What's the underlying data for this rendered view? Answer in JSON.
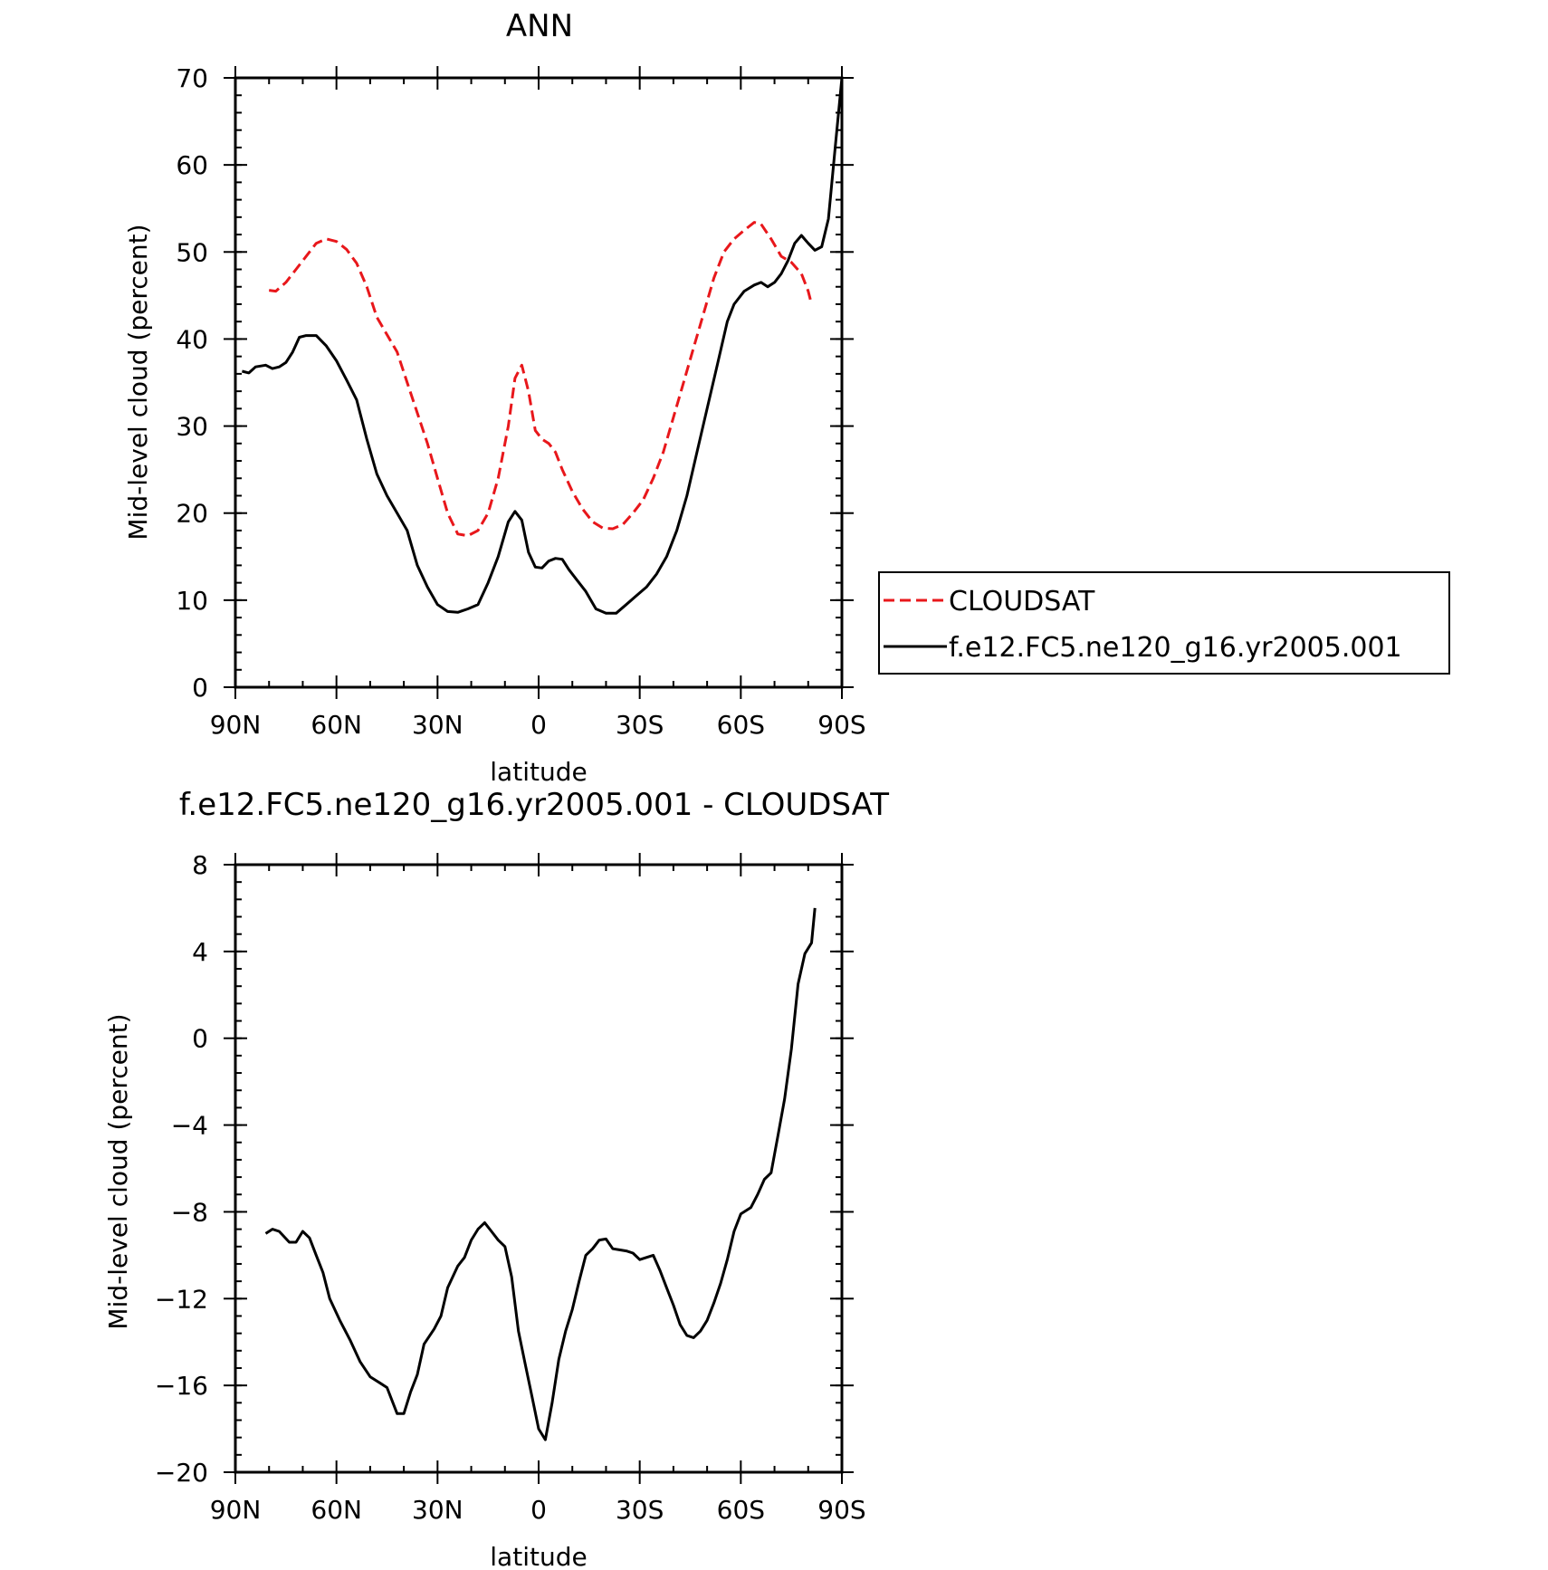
{
  "chart_data": [
    {
      "type": "line",
      "title": "ANN",
      "xlabel": "latitude",
      "ylabel": "Mid-level cloud (percent)",
      "xlim": [
        90,
        -90
      ],
      "ylim": [
        0,
        70
      ],
      "x_ticks": [
        90,
        60,
        30,
        0,
        -30,
        -60,
        -90
      ],
      "x_tick_labels": [
        "90N",
        "60N",
        "30N",
        "0",
        "30S",
        "60S",
        "90S"
      ],
      "y_ticks": [
        0,
        10,
        20,
        30,
        40,
        50,
        60,
        70
      ],
      "y_tick_labels": [
        "0",
        "10",
        "20",
        "30",
        "40",
        "50",
        "60",
        "70"
      ],
      "legend_position": "right",
      "series": [
        {
          "name": "CLOUDSAT",
          "color": "#e8171b",
          "dash": "dashed",
          "points": [
            [
              80,
              45.6
            ],
            [
              78,
              45.5
            ],
            [
              75,
              46.5
            ],
            [
              72,
              48
            ],
            [
              69,
              49.5
            ],
            [
              66,
              51
            ],
            [
              63,
              51.5
            ],
            [
              60,
              51.2
            ],
            [
              57,
              50.3
            ],
            [
              54,
              48.7
            ],
            [
              51,
              46
            ],
            [
              48,
              42.5
            ],
            [
              45,
              40.5
            ],
            [
              42,
              38.5
            ],
            [
              39,
              35
            ],
            [
              36,
              31.5
            ],
            [
              33,
              28
            ],
            [
              30,
              24
            ],
            [
              27,
              20
            ],
            [
              24,
              17.6
            ],
            [
              21,
              17.4
            ],
            [
              18,
              18
            ],
            [
              15,
              20
            ],
            [
              12,
              24
            ],
            [
              9,
              30
            ],
            [
              7,
              35.5
            ],
            [
              5,
              37
            ],
            [
              3,
              34
            ],
            [
              1,
              29.5
            ],
            [
              -1,
              28.5
            ],
            [
              -3,
              28
            ],
            [
              -5,
              27
            ],
            [
              -7,
              25
            ],
            [
              -10,
              22.5
            ],
            [
              -13,
              20.5
            ],
            [
              -16,
              19
            ],
            [
              -19,
              18.3
            ],
            [
              -22,
              18.2
            ],
            [
              -25,
              18.7
            ],
            [
              -28,
              20
            ],
            [
              -31,
              21.5
            ],
            [
              -34,
              24
            ],
            [
              -37,
              27
            ],
            [
              -40,
              31
            ],
            [
              -43,
              35
            ],
            [
              -46,
              39
            ],
            [
              -49,
              43
            ],
            [
              -52,
              47
            ],
            [
              -55,
              50
            ],
            [
              -58,
              51.5
            ],
            [
              -61,
              52.5
            ],
            [
              -64,
              53.4
            ],
            [
              -66,
              53.2
            ],
            [
              -69,
              51.5
            ],
            [
              -72,
              49.5
            ],
            [
              -75,
              48.8
            ],
            [
              -78,
              47.5
            ],
            [
              -80,
              45.5
            ],
            [
              -81,
              44
            ]
          ]
        },
        {
          "name": "f.e12.FC5.ne120_g16.yr2005.001",
          "color": "#000000",
          "dash": "solid",
          "points": [
            [
              88,
              36.3
            ],
            [
              86,
              36.1
            ],
            [
              84,
              36.8
            ],
            [
              81,
              37
            ],
            [
              79,
              36.6
            ],
            [
              77,
              36.8
            ],
            [
              75,
              37.3
            ],
            [
              73,
              38.5
            ],
            [
              71,
              40.2
            ],
            [
              69,
              40.4
            ],
            [
              66,
              40.4
            ],
            [
              63,
              39.2
            ],
            [
              60,
              37.5
            ],
            [
              57,
              35.3
            ],
            [
              54,
              33
            ],
            [
              51,
              28.5
            ],
            [
              48,
              24.5
            ],
            [
              45,
              22
            ],
            [
              42,
              20
            ],
            [
              39,
              18
            ],
            [
              36,
              14
            ],
            [
              33,
              11.5
            ],
            [
              30,
              9.5
            ],
            [
              27,
              8.7
            ],
            [
              24,
              8.6
            ],
            [
              21,
              9
            ],
            [
              18,
              9.5
            ],
            [
              15,
              12
            ],
            [
              12,
              15
            ],
            [
              9,
              19
            ],
            [
              7,
              20.2
            ],
            [
              5,
              19.2
            ],
            [
              3,
              15.5
            ],
            [
              1,
              13.8
            ],
            [
              -1,
              13.7
            ],
            [
              -3,
              14.5
            ],
            [
              -5,
              14.8
            ],
            [
              -7,
              14.7
            ],
            [
              -9,
              13.5
            ],
            [
              -11,
              12.5
            ],
            [
              -14,
              11
            ],
            [
              -17,
              9
            ],
            [
              -20,
              8.5
            ],
            [
              -23,
              8.5
            ],
            [
              -26,
              9.5
            ],
            [
              -29,
              10.5
            ],
            [
              -32,
              11.5
            ],
            [
              -35,
              13
            ],
            [
              -38,
              15
            ],
            [
              -41,
              18
            ],
            [
              -44,
              22
            ],
            [
              -47,
              27
            ],
            [
              -50,
              32
            ],
            [
              -53,
              37
            ],
            [
              -56,
              42
            ],
            [
              -58,
              44
            ],
            [
              -61,
              45.5
            ],
            [
              -64,
              46.2
            ],
            [
              -66,
              46.5
            ],
            [
              -68,
              46
            ],
            [
              -70,
              46.5
            ],
            [
              -72,
              47.5
            ],
            [
              -74,
              49
            ],
            [
              -76,
              51
            ],
            [
              -78,
              51.9
            ],
            [
              -80,
              51
            ],
            [
              -82,
              50.2
            ],
            [
              -84,
              50.6
            ],
            [
              -86,
              53.8
            ],
            [
              -88,
              62
            ],
            [
              -90,
              70
            ]
          ]
        }
      ]
    },
    {
      "type": "line",
      "title": "f.e12.FC5.ne120_g16.yr2005.001 - CLOUDSAT",
      "xlabel": "latitude",
      "ylabel": "Mid-level cloud (percent)",
      "xlim": [
        90,
        -90
      ],
      "ylim": [
        -20,
        8
      ],
      "x_ticks": [
        90,
        60,
        30,
        0,
        -30,
        -60,
        -90
      ],
      "x_tick_labels": [
        "90N",
        "60N",
        "30N",
        "0",
        "30S",
        "60S",
        "90S"
      ],
      "y_ticks": [
        -20,
        -16,
        -12,
        -8,
        -4,
        0,
        4,
        8
      ],
      "y_tick_labels": [
        "−20",
        "−16",
        "−12",
        "−8",
        "−4",
        "0",
        "4",
        "8"
      ],
      "series": [
        {
          "color": "#000000",
          "dash": "solid",
          "points": [
            [
              81,
              -9
            ],
            [
              79,
              -8.8
            ],
            [
              77,
              -8.9
            ],
            [
              74,
              -9.4
            ],
            [
              72,
              -9.4
            ],
            [
              70,
              -8.9
            ],
            [
              68,
              -9.2
            ],
            [
              66,
              -10
            ],
            [
              64,
              -10.8
            ],
            [
              62,
              -12
            ],
            [
              59,
              -13
            ],
            [
              56,
              -13.9
            ],
            [
              53,
              -14.9
            ],
            [
              50,
              -15.6
            ],
            [
              47,
              -15.9
            ],
            [
              45,
              -16.1
            ],
            [
              42,
              -17.3
            ],
            [
              40,
              -17.3
            ],
            [
              38,
              -16.3
            ],
            [
              36,
              -15.5
            ],
            [
              34,
              -14.1
            ],
            [
              31,
              -13.4
            ],
            [
              29,
              -12.8
            ],
            [
              27,
              -11.5
            ],
            [
              24,
              -10.5
            ],
            [
              22,
              -10.1
            ],
            [
              20,
              -9.3
            ],
            [
              18,
              -8.8
            ],
            [
              16,
              -8.5
            ],
            [
              14,
              -8.9
            ],
            [
              12,
              -9.3
            ],
            [
              10,
              -9.6
            ],
            [
              8,
              -11
            ],
            [
              6,
              -13.5
            ],
            [
              4,
              -15
            ],
            [
              2,
              -16.5
            ],
            [
              0,
              -18
            ],
            [
              -2,
              -18.5
            ],
            [
              -4,
              -16.8
            ],
            [
              -6,
              -14.8
            ],
            [
              -8,
              -13.5
            ],
            [
              -10,
              -12.5
            ],
            [
              -12,
              -11.2
            ],
            [
              -14,
              -10
            ],
            [
              -16,
              -9.7
            ],
            [
              -18,
              -9.3
            ],
            [
              -20,
              -9.25
            ],
            [
              -22,
              -9.7
            ],
            [
              -24,
              -9.75
            ],
            [
              -26,
              -9.8
            ],
            [
              -28,
              -9.9
            ],
            [
              -30,
              -10.2
            ],
            [
              -32,
              -10.1
            ],
            [
              -34,
              -10
            ],
            [
              -36,
              -10.7
            ],
            [
              -38,
              -11.5
            ],
            [
              -40,
              -12.3
            ],
            [
              -42,
              -13.2
            ],
            [
              -44,
              -13.7
            ],
            [
              -46,
              -13.8
            ],
            [
              -48,
              -13.5
            ],
            [
              -50,
              -13.0
            ],
            [
              -52,
              -12.2
            ],
            [
              -54,
              -11.3
            ],
            [
              -56,
              -10.2
            ],
            [
              -58,
              -8.9
            ],
            [
              -60,
              -8.1
            ],
            [
              -63,
              -7.8
            ],
            [
              -65,
              -7.2
            ],
            [
              -67,
              -6.5
            ],
            [
              -69,
              -6.2
            ],
            [
              -71,
              -4.5
            ],
            [
              -73,
              -2.8
            ],
            [
              -75,
              -0.5
            ],
            [
              -77,
              2.5
            ],
            [
              -79,
              3.9
            ],
            [
              -81,
              4.4
            ],
            [
              -82,
              6
            ]
          ]
        }
      ]
    }
  ],
  "legend": {
    "items": [
      {
        "label": "CLOUDSAT",
        "color": "#e8171b",
        "dash": "dashed"
      },
      {
        "label": "f.e12.FC5.ne120_g16.yr2005.001",
        "color": "#000000",
        "dash": "solid"
      }
    ]
  }
}
